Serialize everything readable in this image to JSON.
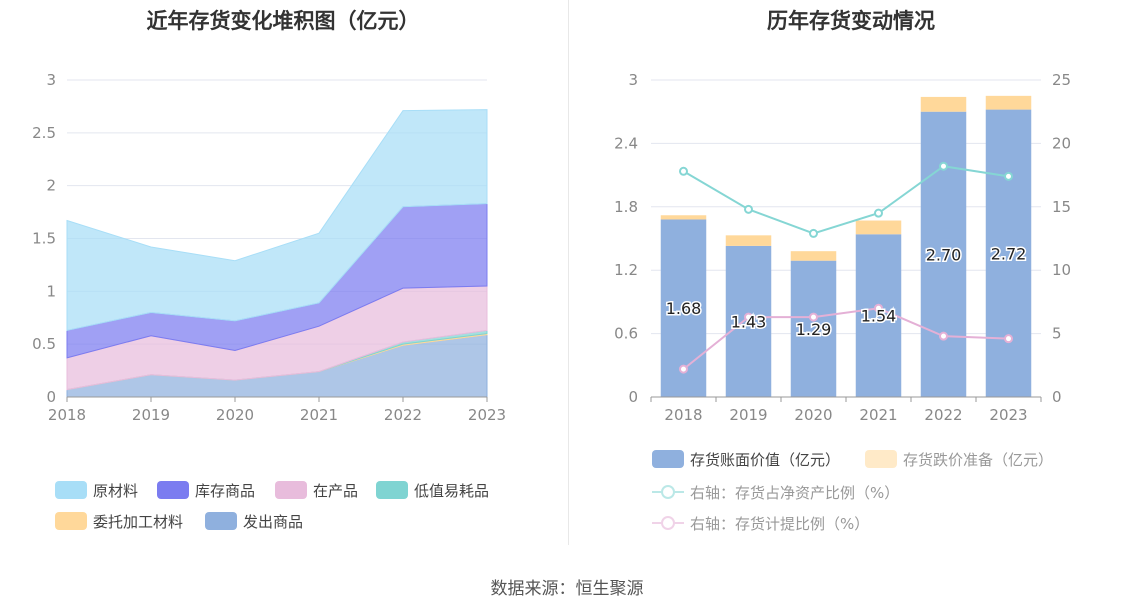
{
  "source_text": "数据来源：恒生聚源",
  "chart_data": [
    {
      "type": "area",
      "stacked": true,
      "title": "近年存货变化堆积图（亿元）",
      "x": [
        "2018",
        "2019",
        "2020",
        "2021",
        "2022",
        "2023"
      ],
      "ylim": [
        0,
        3
      ],
      "yticks": [
        "0",
        "0.5",
        "1",
        "1.5",
        "2",
        "2.5",
        "3"
      ],
      "grid": true,
      "legend_position": "bottom",
      "series": [
        {
          "name": "发出商品",
          "color": "#8fb0de",
          "values": [
            0.07,
            0.21,
            0.16,
            0.24,
            0.49,
            0.59
          ]
        },
        {
          "name": "委托加工材料",
          "color": "#ffd89a",
          "values": [
            0.0,
            0.0,
            0.0,
            0.0,
            0.01,
            0.01
          ]
        },
        {
          "name": "低值易耗品",
          "color": "#7fd4d2",
          "values": [
            0.0,
            0.0,
            0.0,
            0.0,
            0.02,
            0.03
          ]
        },
        {
          "name": "在产品",
          "color": "#e8bcdc",
          "values": [
            0.3,
            0.37,
            0.28,
            0.43,
            0.51,
            0.42
          ]
        },
        {
          "name": "库存商品",
          "color": "#7b7cf0",
          "values": [
            0.26,
            0.22,
            0.28,
            0.22,
            0.77,
            0.78
          ]
        },
        {
          "name": "原材料",
          "color": "#a8def7",
          "values": [
            1.04,
            0.62,
            0.57,
            0.66,
            0.91,
            0.89
          ]
        }
      ],
      "legend_order": [
        "原材料",
        "库存商品",
        "在产品",
        "低值易耗品",
        "委托加工材料",
        "发出商品"
      ]
    },
    {
      "type": "bar",
      "stacked": true,
      "title": "历年存货变动情况",
      "categories": [
        "2018",
        "2019",
        "2020",
        "2021",
        "2022",
        "2023"
      ],
      "ylim": [
        0,
        3
      ],
      "yticks": [
        "0",
        "0.6",
        "1.2",
        "1.8",
        "2.4",
        "3"
      ],
      "y2lim": [
        0,
        25
      ],
      "y2ticks": [
        "0",
        "5",
        "10",
        "15",
        "20",
        "25"
      ],
      "grid": true,
      "legend_position": "bottom",
      "series": [
        {
          "name": "存货账面价值（亿元）",
          "color": "#8fb0de",
          "kind": "bar",
          "values": [
            1.68,
            1.43,
            1.29,
            1.54,
            2.7,
            2.72
          ],
          "labels": [
            "1.68",
            "1.43",
            "1.29",
            "1.54",
            "2.70",
            "2.72"
          ]
        },
        {
          "name": "存货跌价准备（亿元）",
          "color": "#ffd89a",
          "kind": "bar",
          "values": [
            0.04,
            0.1,
            0.09,
            0.13,
            0.14,
            0.13
          ]
        },
        {
          "name": "右轴：存货占净资产比例（%）",
          "color": "#85d6d4",
          "kind": "line",
          "axis": "right",
          "values": [
            17.8,
            14.8,
            12.9,
            14.5,
            18.2,
            17.4
          ]
        },
        {
          "name": "右轴：存货计提比例（%）",
          "color": "#e4b0d6",
          "kind": "line",
          "axis": "right",
          "values": [
            2.2,
            6.3,
            6.3,
            7.0,
            4.8,
            4.6
          ]
        }
      ]
    }
  ]
}
